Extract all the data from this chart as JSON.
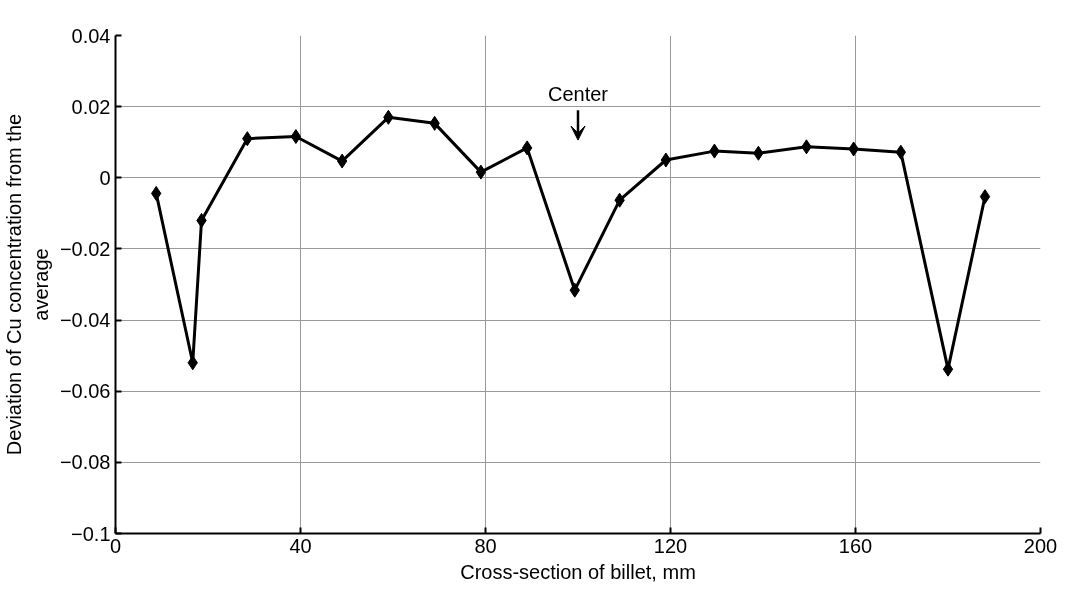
{
  "chart_data": {
    "type": "line",
    "xlabel": "Cross-section of billet, mm",
    "ylabel": "Deviation of Cu concentration from the average",
    "x": [
      8.8,
      16.7,
      18.6,
      28.5,
      39,
      49,
      59,
      69,
      79,
      89,
      99.3,
      109,
      119,
      129.5,
      139,
      149.4,
      159.6,
      169.8,
      180,
      188
    ],
    "series": [
      {
        "color": "#000000",
        "values": [
          -0.0044,
          -0.052,
          -0.012,
          0.011,
          0.0116,
          0.0047,
          0.017,
          0.0153,
          0.0016,
          0.0084,
          -0.0316,
          -0.0063,
          0.005,
          0.0075,
          0.0069,
          0.0087,
          0.0081,
          0.0072,
          -0.0538,
          -0.0053
        ]
      }
    ],
    "xlim": [
      0,
      200
    ],
    "xticks": [
      0,
      40,
      80,
      120,
      160,
      200
    ],
    "ylim": [
      -0.1,
      0.04
    ],
    "yticks": [
      {
        "value": -0.1,
        "label": "−0.1"
      },
      {
        "value": -0.08,
        "label": "−0.08"
      },
      {
        "value": -0.06,
        "label": "−0.06"
      },
      {
        "value": -0.04,
        "label": "−0.04"
      },
      {
        "value": -0.02,
        "label": "−0.02"
      },
      0,
      0.02,
      0.04
    ],
    "grid": true,
    "marker": "diamond",
    "line_style": "solid",
    "annotations": [
      "Center"
    ]
  }
}
